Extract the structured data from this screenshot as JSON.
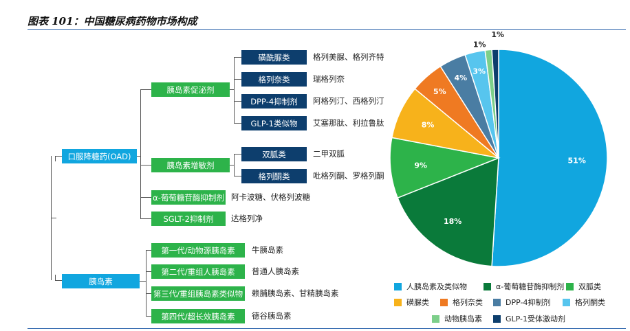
{
  "title": "图表 101：中国糖尿病药物市场构成",
  "tree": {
    "root_oad": "口服降糖药(OAD)",
    "root_insulin": "胰岛素",
    "secretagogue": "胰岛素促泌剂",
    "sensitizer": "胰岛素增敏剂",
    "agi": "α-葡萄糖苷酶抑制剂",
    "agi_drugs": "阿卡波糖、伏格列波糖",
    "sglt2": "SGLT-2抑制剂",
    "sglt2_drugs": "达格列净",
    "sub": [
      {
        "name": "磺酰脲类",
        "drugs": "格列美脲、格列齐特"
      },
      {
        "name": "格列奈类",
        "drugs": "瑞格列奈"
      },
      {
        "name": "DPP-4抑制剂",
        "drugs": "阿格列汀、西格列汀"
      },
      {
        "name": "GLP-1类似物",
        "drugs": "艾塞那肽、利拉鲁肽"
      },
      {
        "name": "双胍类",
        "drugs": "二甲双胍"
      },
      {
        "name": "格列酮类",
        "drugs": "吡格列酮、罗格列酮"
      }
    ],
    "insulin_gen": [
      {
        "name": "第一代/动物源胰岛素",
        "drugs": "牛胰岛素"
      },
      {
        "name": "第二代/重组人胰岛素",
        "drugs": "普通人胰岛素"
      },
      {
        "name": "第三代/重组胰岛素类似物",
        "drugs": "赖脯胰岛素、甘精胰岛素"
      },
      {
        "name": "第四代/超长效胰岛素",
        "drugs": "德谷胰岛素"
      }
    ]
  },
  "chart_data": {
    "type": "pie",
    "slices": [
      {
        "name": "人胰岛素及类似物",
        "value": 51,
        "label": "51%",
        "color": "#11a6df"
      },
      {
        "name": "α-葡萄糖苷酶抑制剂",
        "value": 18,
        "label": "18%",
        "color": "#0a7a3a"
      },
      {
        "name": "双胍类",
        "value": 9,
        "label": "9%",
        "color": "#2db34a"
      },
      {
        "name": "磺脲类",
        "value": 8,
        "label": "8%",
        "color": "#f7b21b"
      },
      {
        "name": "格列奈类",
        "value": 5,
        "label": "5%",
        "color": "#ef7a22"
      },
      {
        "name": "DPP-4抑制剂",
        "value": 4,
        "label": "4%",
        "color": "#4a7da3"
      },
      {
        "name": "格列酮类",
        "value": 3,
        "label": "3%",
        "color": "#57c5ee"
      },
      {
        "name": "动物胰岛素",
        "value": 1,
        "label": "1%",
        "color": "#7dcf8a"
      },
      {
        "name": "GLP-1受体激动剂",
        "value": 1,
        "label": "1%",
        "color": "#0d3e6d"
      }
    ],
    "legend_position": "bottom"
  }
}
